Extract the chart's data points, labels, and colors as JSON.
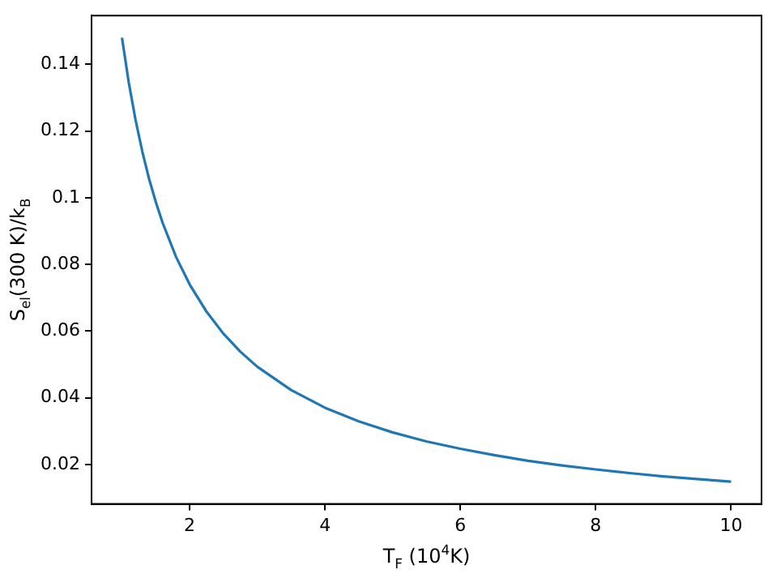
{
  "chart_data": {
    "type": "line",
    "xlabel": "T$_{F}$ (10$^{4}$K)",
    "ylabel": "S$_{el}$(300 K)/k$_{B}$",
    "x": [
      1,
      1.1,
      1.2,
      1.3,
      1.4,
      1.5,
      1.6,
      1.8,
      2,
      2.25,
      2.5,
      2.75,
      3,
      3.5,
      4,
      4.5,
      5,
      5.5,
      6,
      6.5,
      7,
      7.5,
      8,
      8.5,
      9,
      9.5,
      10
    ],
    "series": [
      {
        "color": "#1f77b4",
        "values": [
          0.148,
          0.1346,
          0.1234,
          0.1139,
          0.1057,
          0.0987,
          0.0925,
          0.0822,
          0.074,
          0.0658,
          0.0592,
          0.0538,
          0.0493,
          0.0423,
          0.037,
          0.0329,
          0.0296,
          0.0269,
          0.0247,
          0.0228,
          0.0211,
          0.0197,
          0.0185,
          0.0174,
          0.0164,
          0.0156,
          0.0148
        ]
      }
    ],
    "xlim": [
      0.55,
      10.45
    ],
    "ylim": [
      0.00814,
      0.15466
    ],
    "xticks": [
      2,
      4,
      6,
      8,
      10
    ],
    "yticks": [
      0.02,
      0.04,
      0.06,
      0.08,
      0.1,
      0.12,
      0.14
    ],
    "grid": false,
    "legend": false,
    "marker": "none",
    "line_style": "solid"
  }
}
